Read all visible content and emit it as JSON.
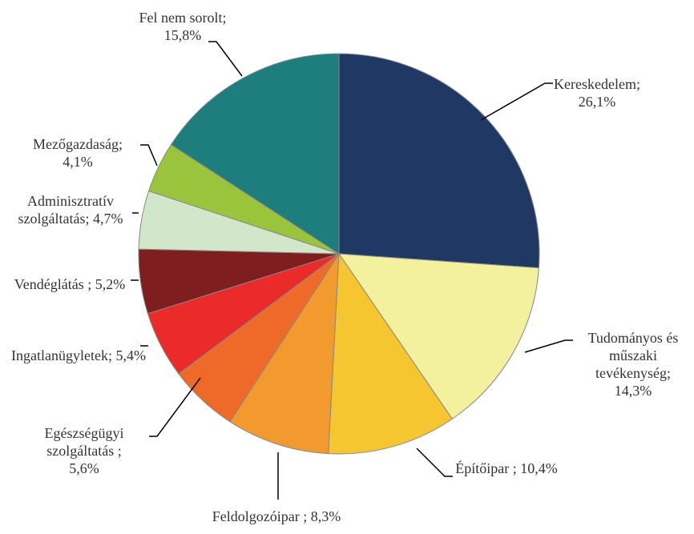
{
  "chart_data": {
    "type": "pie",
    "categories": [
      "Kereskedelem;",
      "Tudományos és műszaki tevékenység;",
      "Építőipar ;",
      "Feldolgozóipar ;",
      "Egészségügyi szolgáltatás ;",
      "Ingatlanügyletek;",
      "Vendéglátás ;",
      "Adminisztratív szolgáltatás;",
      "Mezőgazdaság;",
      "Fel nem sorolt;"
    ],
    "values": [
      26.1,
      14.3,
      10.4,
      8.3,
      5.6,
      5.4,
      5.2,
      4.7,
      4.1,
      15.8
    ],
    "value_labels": [
      "26,1%",
      "14,3%",
      "10,4%",
      "8,3%",
      "5,6%",
      "5,4%",
      "5,2%",
      "4,7%",
      "4,1%",
      "15,8%"
    ],
    "colors": [
      "#203864",
      "#f3f09e",
      "#f5c630",
      "#f29a2e",
      "#ef6a29",
      "#eb2a2a",
      "#7e1e1e",
      "#d2e6c9",
      "#99c43b",
      "#1e7d7d"
    ]
  }
}
